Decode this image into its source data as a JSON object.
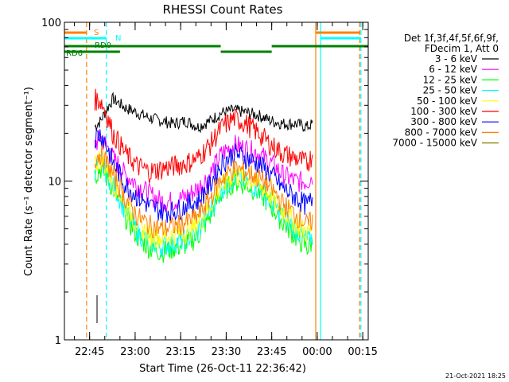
{
  "chart_data": {
    "type": "line",
    "title": "RHESSI Count Rates",
    "xlabel": "Start Time (26-Oct-11 22:36:42)",
    "ylabel": "Count Rate (s⁻¹ detector segment⁻¹)",
    "yscale": "log",
    "ylim": [
      1,
      100
    ],
    "y_ticks": [
      {
        "value": 1,
        "label": "1"
      },
      {
        "value": 10,
        "label": "10"
      },
      {
        "value": 100,
        "label": "100"
      }
    ],
    "x_ticks": [
      {
        "minutes": 8.3,
        "label": "22:45"
      },
      {
        "minutes": 23.3,
        "label": "23:00"
      },
      {
        "minutes": 38.3,
        "label": "23:15"
      },
      {
        "minutes": 53.3,
        "label": "23:30"
      },
      {
        "minutes": 68.3,
        "label": "23:45"
      },
      {
        "minutes": 83.3,
        "label": "00:00"
      },
      {
        "minutes": 98.3,
        "label": "00:15"
      }
    ],
    "xlim_minutes": [
      0,
      100.1
    ],
    "grid": false,
    "legend_position": "right",
    "legend_header": [
      "Det 1f,3f,4f,5f,6f,9f,",
      "FDecim 1, Att 0"
    ],
    "x_minutes": [
      7,
      10,
      12,
      16,
      20,
      24,
      28,
      32,
      36,
      40,
      44,
      48,
      52,
      56,
      60,
      64,
      68,
      72,
      76,
      80,
      82
    ],
    "series": [
      {
        "name": "3 - 6 keV",
        "color": "#000000",
        "values": [
          null,
          22,
          24,
          33,
          29,
          27,
          25,
          24,
          23,
          24,
          22,
          24,
          27,
          28,
          27,
          26,
          24,
          23,
          23,
          22,
          23
        ]
      },
      {
        "name": "6 - 12 keV",
        "color": "#ff00ff",
        "values": [
          null,
          17,
          19,
          14,
          11,
          9.5,
          8.3,
          7.5,
          7.5,
          8,
          9,
          11,
          15,
          17,
          16,
          15,
          13,
          11,
          10,
          10,
          11
        ]
      },
      {
        "name": "12 - 25 keV",
        "color": "#00ff00",
        "values": [
          null,
          11,
          12,
          9,
          6,
          4.5,
          3.8,
          3.6,
          3.8,
          4,
          4.5,
          6,
          8.5,
          10,
          9.5,
          8.5,
          7,
          5.5,
          4.5,
          3.8,
          4.2
        ]
      },
      {
        "name": "25 - 50 keV",
        "color": "#00ffff",
        "values": [
          null,
          12,
          13,
          9.5,
          6.5,
          4.8,
          4.1,
          3.9,
          4.1,
          4.3,
          4.8,
          6.5,
          9,
          10.5,
          10,
          9,
          7.5,
          6,
          5,
          4.2,
          4.6
        ]
      },
      {
        "name": "50 - 100 keV",
        "color": "#ffff00",
        "values": [
          null,
          13,
          14,
          10,
          7,
          5.3,
          4.6,
          4.4,
          4.6,
          4.8,
          5.3,
          7,
          9.5,
          11,
          10.5,
          9.5,
          8,
          6.5,
          5.5,
          4.7,
          5.1
        ]
      },
      {
        "name": "100 - 300 keV",
        "color": "#ff0000",
        "values": [
          null,
          33,
          32,
          20,
          15,
          12.5,
          11.5,
          12,
          12.5,
          13,
          14,
          17,
          22,
          25,
          23,
          20,
          17,
          15,
          14,
          13,
          15
        ]
      },
      {
        "name": "300 - 800 keV",
        "color": "#0000ff",
        "values": [
          null,
          19,
          20,
          13,
          9.5,
          8,
          7,
          6.5,
          6.5,
          7,
          7.5,
          9.5,
          13,
          15,
          14,
          13,
          11,
          9,
          8,
          7,
          8
        ]
      },
      {
        "name": "800 - 7000 keV",
        "color": "#ff8000",
        "values": [
          null,
          14,
          15,
          11,
          7.8,
          6,
          5.3,
          5,
          5.2,
          5.5,
          6,
          7.8,
          10.5,
          12,
          11.5,
          10.5,
          9,
          7.2,
          6.2,
          5.3,
          5.8
        ]
      },
      {
        "name": "7000 - 15000 keV",
        "color": "#808000",
        "values": [
          null,
          null,
          null,
          null,
          null,
          null,
          null,
          null,
          null,
          null,
          null,
          null,
          null,
          null,
          null,
          null,
          null,
          null,
          null,
          null,
          null
        ]
      }
    ],
    "vertical_markers": [
      {
        "minutes": 7.3,
        "color": "#ff8000",
        "style": "dashed"
      },
      {
        "minutes": 13.8,
        "color": "#00ffff",
        "style": "dashed"
      },
      {
        "minutes": 82.8,
        "color": "#ff8000",
        "style": "solid"
      },
      {
        "minutes": 84.4,
        "color": "#00ffff",
        "style": "solid"
      },
      {
        "minutes": 97.3,
        "color": "#ff8000",
        "style": "dashed"
      },
      {
        "minutes": 97.7,
        "color": "#00ffff",
        "style": "dashed"
      }
    ],
    "flag_bars": [
      {
        "label": "S",
        "color": "#ff8000",
        "segments": [
          [
            0,
            7.3
          ],
          [
            82.8,
            97.3
          ]
        ]
      },
      {
        "label": "N",
        "color": "#00ffff",
        "segments": [
          [
            0,
            13.8
          ],
          [
            84.4,
            97.7
          ]
        ]
      },
      {
        "label": "RD0",
        "color": "#008000",
        "segments": [
          [
            0,
            51.5
          ],
          [
            51.5,
            68.3
          ],
          [
            68.3,
            100.1
          ]
        ]
      },
      {
        "label": "RD6",
        "color": "#008000",
        "segments": [
          [
            0,
            18.3
          ]
        ]
      }
    ],
    "footer_date": "21-Oct-2021 18:25"
  }
}
